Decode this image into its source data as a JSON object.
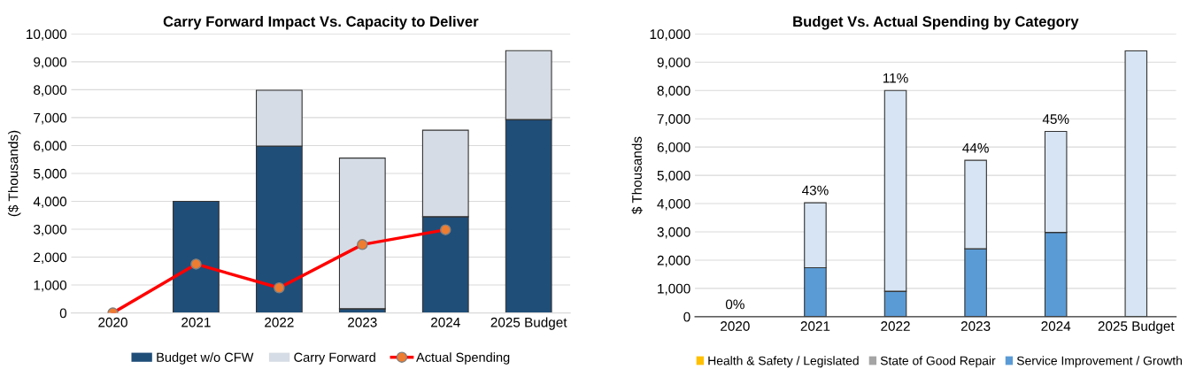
{
  "chart_data": [
    {
      "type": "bar",
      "title": "Carry Forward Impact Vs. Capacity to Deliver",
      "ylabel": "($ Thousands)",
      "categories": [
        "2020",
        "2021",
        "2022",
        "2023",
        "2024",
        "2025 Budget"
      ],
      "stacked": true,
      "ylim": [
        0,
        10000
      ],
      "yticks": [
        {
          "value": 0,
          "label": "0"
        },
        {
          "value": 1000,
          "label": "1,000"
        },
        {
          "value": 2000,
          "label": "2,000"
        },
        {
          "value": 3000,
          "label": "3,000"
        },
        {
          "value": 4000,
          "label": "4,000"
        },
        {
          "value": 5000,
          "label": "5,000"
        },
        {
          "value": 6000,
          "label": "6,000"
        },
        {
          "value": 7000,
          "label": "7,000"
        },
        {
          "value": 8000,
          "label": "8,000"
        },
        {
          "value": 9000,
          "label": "9,000"
        },
        {
          "value": 10000,
          "label": "10,000"
        }
      ],
      "grid": "y",
      "legend": "bottom",
      "series": [
        {
          "name": "Budget w/o CFW",
          "color": "#1f4e79",
          "values": [
            0,
            4000,
            5980,
            150,
            3450,
            6930
          ]
        },
        {
          "name": "Carry Forward",
          "color": "#d6dce5",
          "values": [
            0,
            0,
            2000,
            5400,
            3100,
            2470
          ]
        },
        {
          "name": "Actual Spending",
          "type": "line",
          "color": "#ff0000",
          "marker": "circle",
          "values": [
            0,
            1750,
            900,
            2450,
            2980,
            null
          ]
        }
      ]
    },
    {
      "type": "bar",
      "title": "Budget Vs. Actual Spending by Category",
      "ylabel": "$ Thousands",
      "categories": [
        "2020",
        "2021",
        "2022",
        "2023",
        "2024",
        "2025 Budget"
      ],
      "stacked": true,
      "ylim": [
        0,
        10000
      ],
      "yticks": [
        {
          "value": 0,
          "label": "0"
        },
        {
          "value": 1000,
          "label": "1,000"
        },
        {
          "value": 2000,
          "label": "2,000"
        },
        {
          "value": 3000,
          "label": "3,000"
        },
        {
          "value": 4000,
          "label": "4,000"
        },
        {
          "value": 5000,
          "label": "5,000"
        },
        {
          "value": 6000,
          "label": "6,000"
        },
        {
          "value": 7000,
          "label": "7,000"
        },
        {
          "value": 8000,
          "label": "8,000"
        },
        {
          "value": 9000,
          "label": "9,000"
        },
        {
          "value": 10000,
          "label": "10,000"
        }
      ],
      "grid": "y",
      "legend": "bottom",
      "series": [
        {
          "name": "Health & Safety / Legislated",
          "color": "#ffc000",
          "values": [
            0,
            0,
            0,
            0,
            0,
            0
          ]
        },
        {
          "name": "State of Good Repair",
          "color": "#a5a5a5",
          "values": [
            0,
            0,
            0,
            0,
            0,
            0
          ]
        },
        {
          "name": "Service Improvement / Growth",
          "color": "#5b9bd5",
          "values": [
            0,
            1730,
            900,
            2400,
            2980,
            0
          ]
        },
        {
          "color": "#d6e4f3",
          "values": [
            0,
            2300,
            7100,
            3130,
            3570,
            9400
          ]
        }
      ],
      "annotations": [
        {
          "text": "0%",
          "x": "2020",
          "y": 0
        },
        {
          "text": "43%",
          "x": "2021",
          "y": 4030
        },
        {
          "text": "11%",
          "x": "2022",
          "y": 8000
        },
        {
          "text": "44%",
          "x": "2023",
          "y": 5530
        },
        {
          "text": "45%",
          "x": "2024",
          "y": 6550
        }
      ]
    }
  ]
}
